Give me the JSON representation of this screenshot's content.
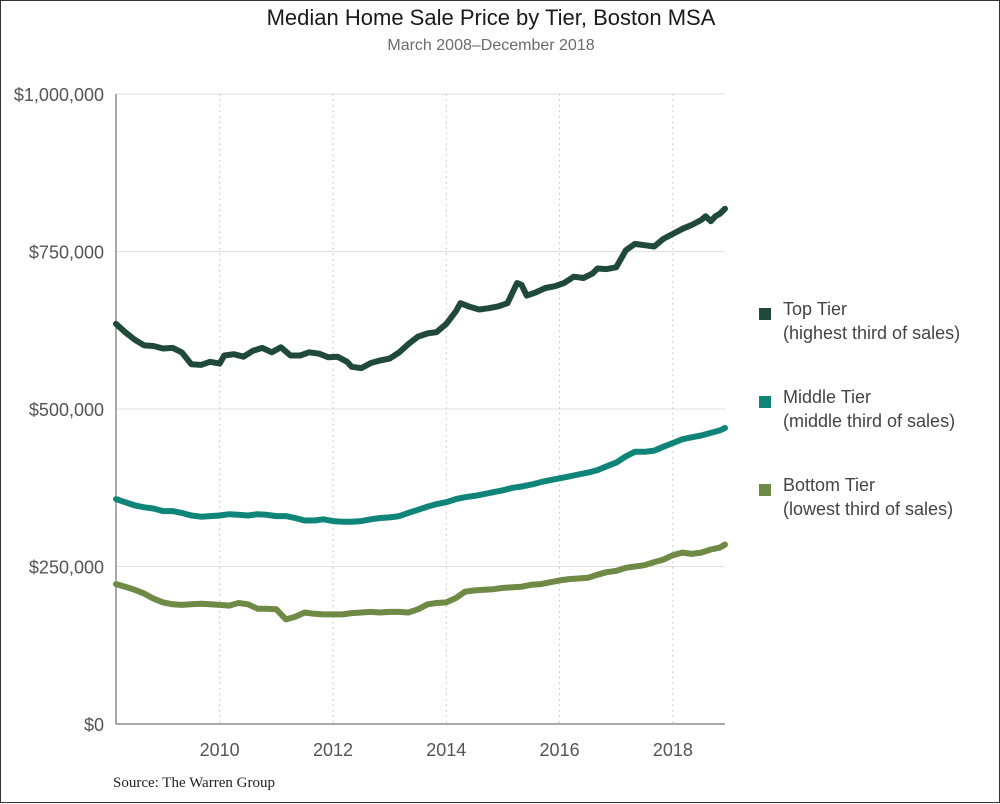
{
  "chart_data": {
    "type": "line",
    "title": "Median Home Sale Price by Tier, Boston MSA",
    "subtitle": "March 2008–December 2018",
    "source": "Source: The Warren Group",
    "xlim": [
      2008.17,
      2018.92
    ],
    "ylim": [
      0,
      1000000
    ],
    "x_ticks": [
      2010,
      2012,
      2014,
      2016,
      2018
    ],
    "x_tick_labels": [
      "2010",
      "2012",
      "2014",
      "2016",
      "2018"
    ],
    "y_ticks": [
      0,
      250000,
      500000,
      750000,
      1000000
    ],
    "y_tick_labels": [
      "$0",
      "$250,000",
      "$500,000",
      "$750,000",
      "$1,000,000"
    ],
    "grid": "vertical dotted at x ticks, horizontal solid at y ticks",
    "legend_position": "right",
    "series": [
      {
        "name": "Top Tier",
        "subtitle": "(highest third of sales)",
        "color": "#1f4a3a",
        "points": [
          [
            2008.17,
            635000
          ],
          [
            2008.33,
            622000
          ],
          [
            2008.5,
            610000
          ],
          [
            2008.67,
            601000
          ],
          [
            2008.83,
            600000
          ],
          [
            2009.0,
            596000
          ],
          [
            2009.17,
            597000
          ],
          [
            2009.33,
            590000
          ],
          [
            2009.5,
            571000
          ],
          [
            2009.67,
            570000
          ],
          [
            2009.83,
            575000
          ],
          [
            2010.0,
            572000
          ],
          [
            2010.08,
            585000
          ],
          [
            2010.25,
            587000
          ],
          [
            2010.42,
            583000
          ],
          [
            2010.58,
            592000
          ],
          [
            2010.75,
            597000
          ],
          [
            2010.92,
            590000
          ],
          [
            2011.08,
            598000
          ],
          [
            2011.25,
            585000
          ],
          [
            2011.42,
            585000
          ],
          [
            2011.58,
            590000
          ],
          [
            2011.75,
            588000
          ],
          [
            2011.92,
            582000
          ],
          [
            2012.08,
            583000
          ],
          [
            2012.25,
            575000
          ],
          [
            2012.33,
            567000
          ],
          [
            2012.5,
            565000
          ],
          [
            2012.67,
            573000
          ],
          [
            2012.83,
            577000
          ],
          [
            2013.0,
            580000
          ],
          [
            2013.17,
            590000
          ],
          [
            2013.33,
            603000
          ],
          [
            2013.5,
            615000
          ],
          [
            2013.67,
            620000
          ],
          [
            2013.83,
            622000
          ],
          [
            2014.0,
            635000
          ],
          [
            2014.17,
            655000
          ],
          [
            2014.25,
            668000
          ],
          [
            2014.42,
            662000
          ],
          [
            2014.58,
            658000
          ],
          [
            2014.75,
            660000
          ],
          [
            2014.92,
            663000
          ],
          [
            2015.08,
            668000
          ],
          [
            2015.25,
            700000
          ],
          [
            2015.33,
            697000
          ],
          [
            2015.42,
            680000
          ],
          [
            2015.58,
            685000
          ],
          [
            2015.75,
            692000
          ],
          [
            2015.92,
            695000
          ],
          [
            2016.08,
            700000
          ],
          [
            2016.25,
            710000
          ],
          [
            2016.42,
            708000
          ],
          [
            2016.58,
            715000
          ],
          [
            2016.67,
            723000
          ],
          [
            2016.83,
            722000
          ],
          [
            2017.0,
            725000
          ],
          [
            2017.17,
            752000
          ],
          [
            2017.33,
            762000
          ],
          [
            2017.5,
            760000
          ],
          [
            2017.67,
            758000
          ],
          [
            2017.83,
            770000
          ],
          [
            2018.0,
            778000
          ],
          [
            2018.17,
            786000
          ],
          [
            2018.33,
            792000
          ],
          [
            2018.5,
            800000
          ],
          [
            2018.58,
            806000
          ],
          [
            2018.67,
            798000
          ],
          [
            2018.75,
            806000
          ],
          [
            2018.83,
            810000
          ],
          [
            2018.92,
            818000
          ]
        ]
      },
      {
        "name": "Middle Tier",
        "subtitle": "(middle third of sales)",
        "color": "#0f857a",
        "points": [
          [
            2008.17,
            357000
          ],
          [
            2008.33,
            352000
          ],
          [
            2008.5,
            347000
          ],
          [
            2008.67,
            344000
          ],
          [
            2008.83,
            342000
          ],
          [
            2009.0,
            338000
          ],
          [
            2009.17,
            338000
          ],
          [
            2009.33,
            335000
          ],
          [
            2009.5,
            331000
          ],
          [
            2009.67,
            329000
          ],
          [
            2009.83,
            330000
          ],
          [
            2010.0,
            331000
          ],
          [
            2010.17,
            333000
          ],
          [
            2010.33,
            332000
          ],
          [
            2010.5,
            331000
          ],
          [
            2010.67,
            333000
          ],
          [
            2010.83,
            332000
          ],
          [
            2011.0,
            330000
          ],
          [
            2011.17,
            330000
          ],
          [
            2011.33,
            327000
          ],
          [
            2011.5,
            323000
          ],
          [
            2011.67,
            323000
          ],
          [
            2011.83,
            325000
          ],
          [
            2012.0,
            322000
          ],
          [
            2012.17,
            321000
          ],
          [
            2012.33,
            321000
          ],
          [
            2012.5,
            322000
          ],
          [
            2012.67,
            325000
          ],
          [
            2012.83,
            327000
          ],
          [
            2013.0,
            328000
          ],
          [
            2013.17,
            330000
          ],
          [
            2013.33,
            335000
          ],
          [
            2013.5,
            340000
          ],
          [
            2013.67,
            345000
          ],
          [
            2013.83,
            349000
          ],
          [
            2014.0,
            352000
          ],
          [
            2014.17,
            357000
          ],
          [
            2014.33,
            360000
          ],
          [
            2014.5,
            362000
          ],
          [
            2014.67,
            365000
          ],
          [
            2014.83,
            368000
          ],
          [
            2015.0,
            371000
          ],
          [
            2015.17,
            375000
          ],
          [
            2015.33,
            377000
          ],
          [
            2015.5,
            380000
          ],
          [
            2015.67,
            384000
          ],
          [
            2015.83,
            387000
          ],
          [
            2016.0,
            390000
          ],
          [
            2016.17,
            393000
          ],
          [
            2016.33,
            396000
          ],
          [
            2016.5,
            399000
          ],
          [
            2016.67,
            403000
          ],
          [
            2016.83,
            409000
          ],
          [
            2017.0,
            415000
          ],
          [
            2017.17,
            425000
          ],
          [
            2017.33,
            432000
          ],
          [
            2017.5,
            432000
          ],
          [
            2017.67,
            434000
          ],
          [
            2017.83,
            440000
          ],
          [
            2018.0,
            446000
          ],
          [
            2018.17,
            452000
          ],
          [
            2018.33,
            455000
          ],
          [
            2018.5,
            458000
          ],
          [
            2018.67,
            462000
          ],
          [
            2018.83,
            466000
          ],
          [
            2018.92,
            470000
          ]
        ]
      },
      {
        "name": "Bottom Tier",
        "subtitle": "(lowest third of sales)",
        "color": "#6e8a44",
        "points": [
          [
            2008.17,
            222000
          ],
          [
            2008.33,
            218000
          ],
          [
            2008.5,
            213000
          ],
          [
            2008.67,
            207000
          ],
          [
            2008.83,
            199000
          ],
          [
            2009.0,
            193000
          ],
          [
            2009.17,
            190000
          ],
          [
            2009.33,
            189000
          ],
          [
            2009.5,
            190000
          ],
          [
            2009.67,
            191000
          ],
          [
            2009.83,
            190000
          ],
          [
            2010.0,
            189000
          ],
          [
            2010.17,
            188000
          ],
          [
            2010.33,
            192000
          ],
          [
            2010.5,
            190000
          ],
          [
            2010.67,
            183000
          ],
          [
            2010.83,
            183000
          ],
          [
            2011.0,
            182000
          ],
          [
            2011.17,
            166000
          ],
          [
            2011.33,
            170000
          ],
          [
            2011.5,
            177000
          ],
          [
            2011.67,
            175000
          ],
          [
            2011.83,
            174000
          ],
          [
            2012.0,
            174000
          ],
          [
            2012.17,
            174000
          ],
          [
            2012.33,
            176000
          ],
          [
            2012.5,
            177000
          ],
          [
            2012.67,
            178000
          ],
          [
            2012.83,
            177000
          ],
          [
            2013.0,
            178000
          ],
          [
            2013.17,
            178000
          ],
          [
            2013.33,
            177000
          ],
          [
            2013.5,
            182000
          ],
          [
            2013.67,
            190000
          ],
          [
            2013.83,
            192000
          ],
          [
            2014.0,
            193000
          ],
          [
            2014.17,
            200000
          ],
          [
            2014.33,
            210000
          ],
          [
            2014.5,
            212000
          ],
          [
            2014.67,
            213000
          ],
          [
            2014.83,
            214000
          ],
          [
            2015.0,
            216000
          ],
          [
            2015.17,
            217000
          ],
          [
            2015.33,
            218000
          ],
          [
            2015.5,
            221000
          ],
          [
            2015.67,
            222000
          ],
          [
            2015.83,
            225000
          ],
          [
            2016.0,
            228000
          ],
          [
            2016.17,
            230000
          ],
          [
            2016.33,
            231000
          ],
          [
            2016.5,
            232000
          ],
          [
            2016.67,
            237000
          ],
          [
            2016.83,
            241000
          ],
          [
            2017.0,
            243000
          ],
          [
            2017.17,
            248000
          ],
          [
            2017.33,
            250000
          ],
          [
            2017.5,
            252000
          ],
          [
            2017.67,
            257000
          ],
          [
            2017.83,
            261000
          ],
          [
            2018.0,
            268000
          ],
          [
            2018.17,
            272000
          ],
          [
            2018.33,
            270000
          ],
          [
            2018.5,
            272000
          ],
          [
            2018.67,
            277000
          ],
          [
            2018.83,
            280000
          ],
          [
            2018.92,
            285000
          ]
        ]
      }
    ]
  }
}
